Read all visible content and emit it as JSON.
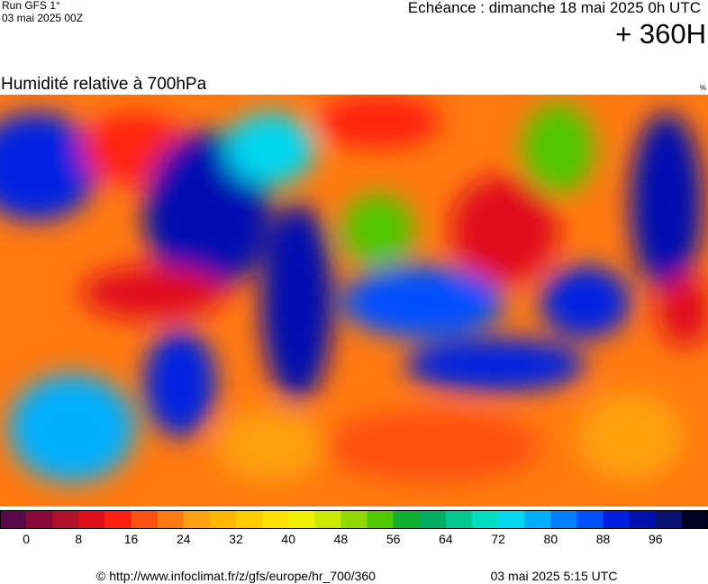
{
  "header": {
    "run": "Run GFS 1°",
    "run_date": "03 mai 2025 00Z",
    "forecast": "Echéance : dimanche 18 mai 2025 0h UTC",
    "lead": "+ 360H"
  },
  "map": {
    "title": "Humidité relative à 700hPa",
    "unit": "%"
  },
  "colorbar": {
    "colors": [
      "#5a0a4a",
      "#8b0a3a",
      "#b0102a",
      "#e0101a",
      "#ff2010",
      "#ff5010",
      "#ff7a10",
      "#ffa010",
      "#ffb800",
      "#ffcc00",
      "#ffe000",
      "#f0f000",
      "#c8e800",
      "#90d800",
      "#50c800",
      "#10b030",
      "#00b060",
      "#00c890",
      "#00e0c0",
      "#00d8f0",
      "#00b0ff",
      "#0080ff",
      "#0050ff",
      "#0020e0",
      "#0010b0",
      "#081070",
      "#000020"
    ],
    "labels": [
      0,
      8,
      16,
      24,
      32,
      40,
      48,
      56,
      64,
      72,
      80,
      88,
      96
    ]
  },
  "footer": {
    "source": "© http://www.infoclimat.fr/z/gfs/europe/hr_700/360",
    "timestamp": "03 mai 2025  5:15 UTC"
  }
}
